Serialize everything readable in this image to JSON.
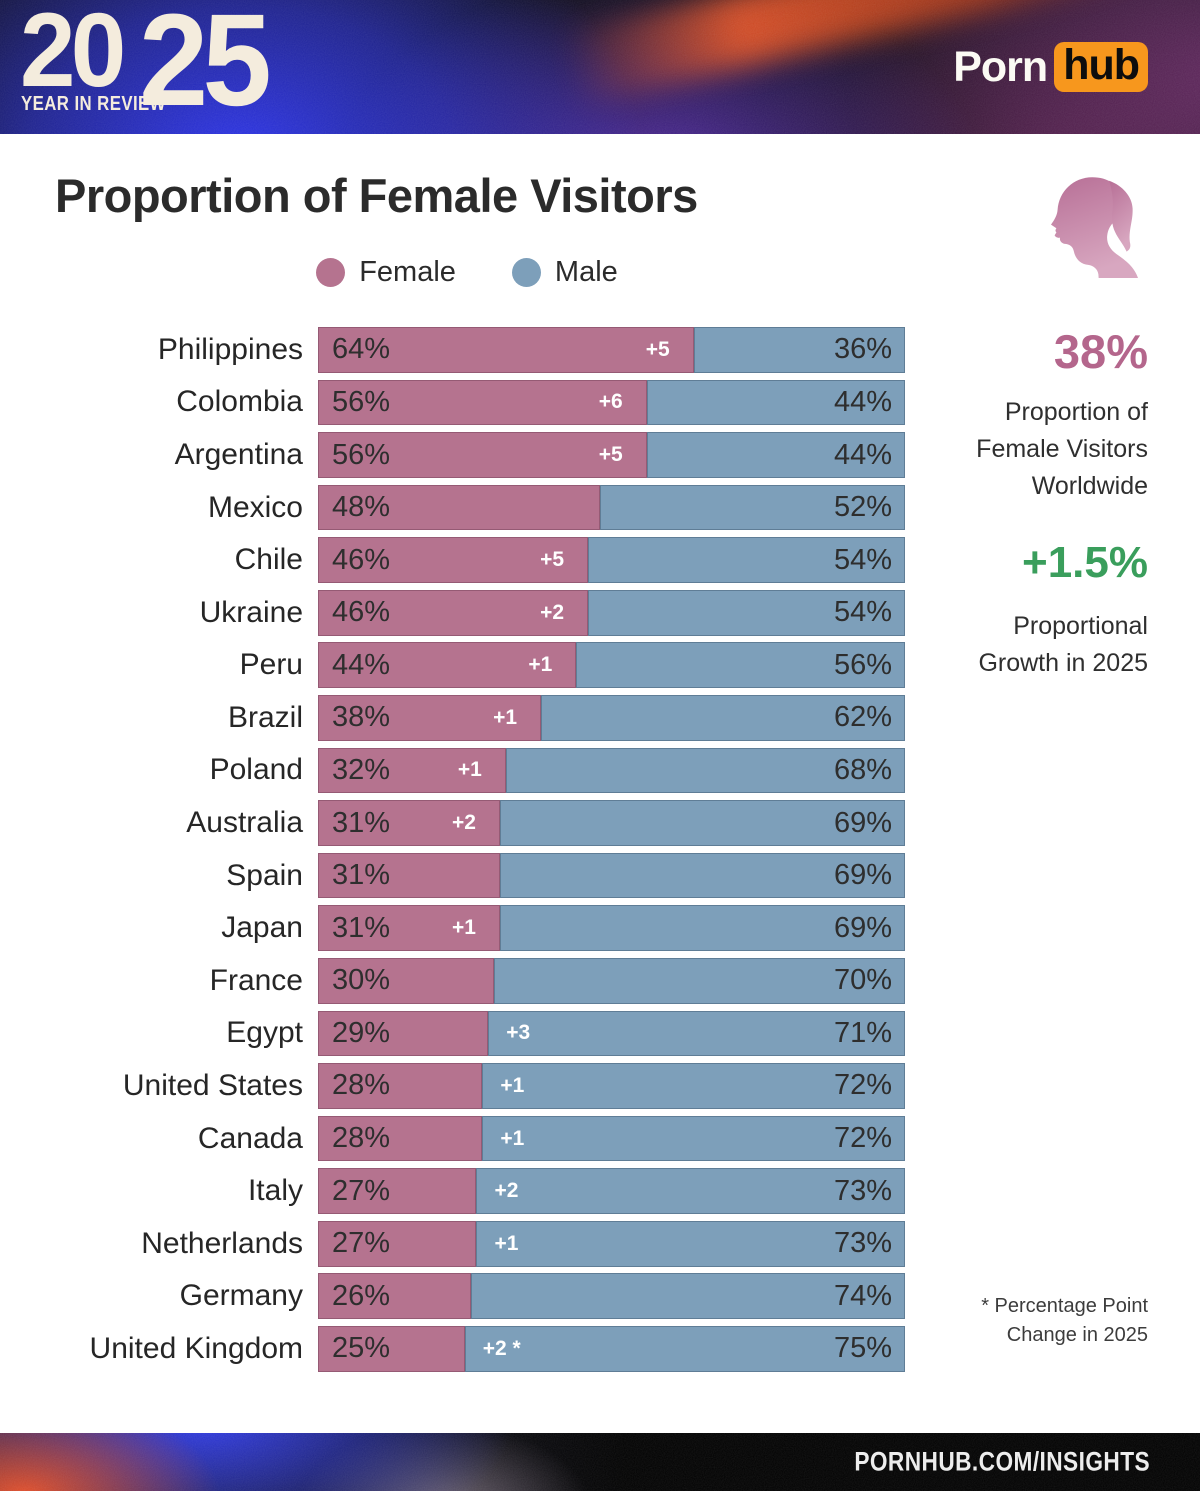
{
  "header": {
    "year": "2025",
    "year_left": "20",
    "year_right": "25",
    "tagline": "YEAR IN REVIEW",
    "brand_porn": "Porn",
    "brand_hub": "hub"
  },
  "main": {
    "title": "Proportion of Female Visitors"
  },
  "legend": {
    "female_label": "Female",
    "male_label": "Male"
  },
  "sidebar": {
    "icon": "female-silhouette-icon",
    "stat_primary_value": "38%",
    "stat_primary_label": "Proportion of Female Visitors Worldwide",
    "stat_secondary_value": "+1.5%",
    "stat_secondary_label": "Proportional Growth in 2025"
  },
  "footnote": "* Percentage Point Change in 2025",
  "footer": {
    "site": "PORNHUB.COM/INSIGHTS"
  },
  "colors": {
    "female": "#b5738f",
    "male": "#7d9fba",
    "stat_pink": "#b4668c",
    "stat_green": "#3a9e5c",
    "hub_orange": "#f7971d"
  },
  "chart_data": {
    "type": "bar",
    "orientation": "horizontal",
    "stacked": true,
    "title": "Proportion of Female Visitors",
    "legend_entries": [
      "Female",
      "Male"
    ],
    "value_unit": "percent",
    "xlim": [
      0,
      100
    ],
    "grid": false,
    "categories": [
      "Philippines",
      "Colombia",
      "Argentina",
      "Mexico",
      "Chile",
      "Ukraine",
      "Peru",
      "Brazil",
      "Poland",
      "Australia",
      "Spain",
      "Japan",
      "France",
      "Egypt",
      "United States",
      "Canada",
      "Italy",
      "Netherlands",
      "Germany",
      "United Kingdom"
    ],
    "series": [
      {
        "name": "Female",
        "values": [
          64,
          56,
          56,
          48,
          46,
          46,
          44,
          38,
          32,
          31,
          31,
          31,
          30,
          29,
          28,
          28,
          27,
          27,
          26,
          25
        ]
      },
      {
        "name": "Male",
        "values": [
          36,
          44,
          44,
          52,
          54,
          54,
          56,
          62,
          68,
          69,
          69,
          69,
          70,
          71,
          72,
          72,
          73,
          73,
          74,
          75
        ]
      }
    ],
    "change_labels": [
      "+5",
      "+6",
      "+5",
      "",
      "+5",
      "+2",
      "+1",
      "+1",
      "+1",
      "+2",
      "",
      "+1",
      "",
      "+3",
      "+1",
      "+1",
      "+2",
      "+1",
      "",
      "+2 *"
    ],
    "annotations": "* Percentage Point Change in 2025"
  }
}
